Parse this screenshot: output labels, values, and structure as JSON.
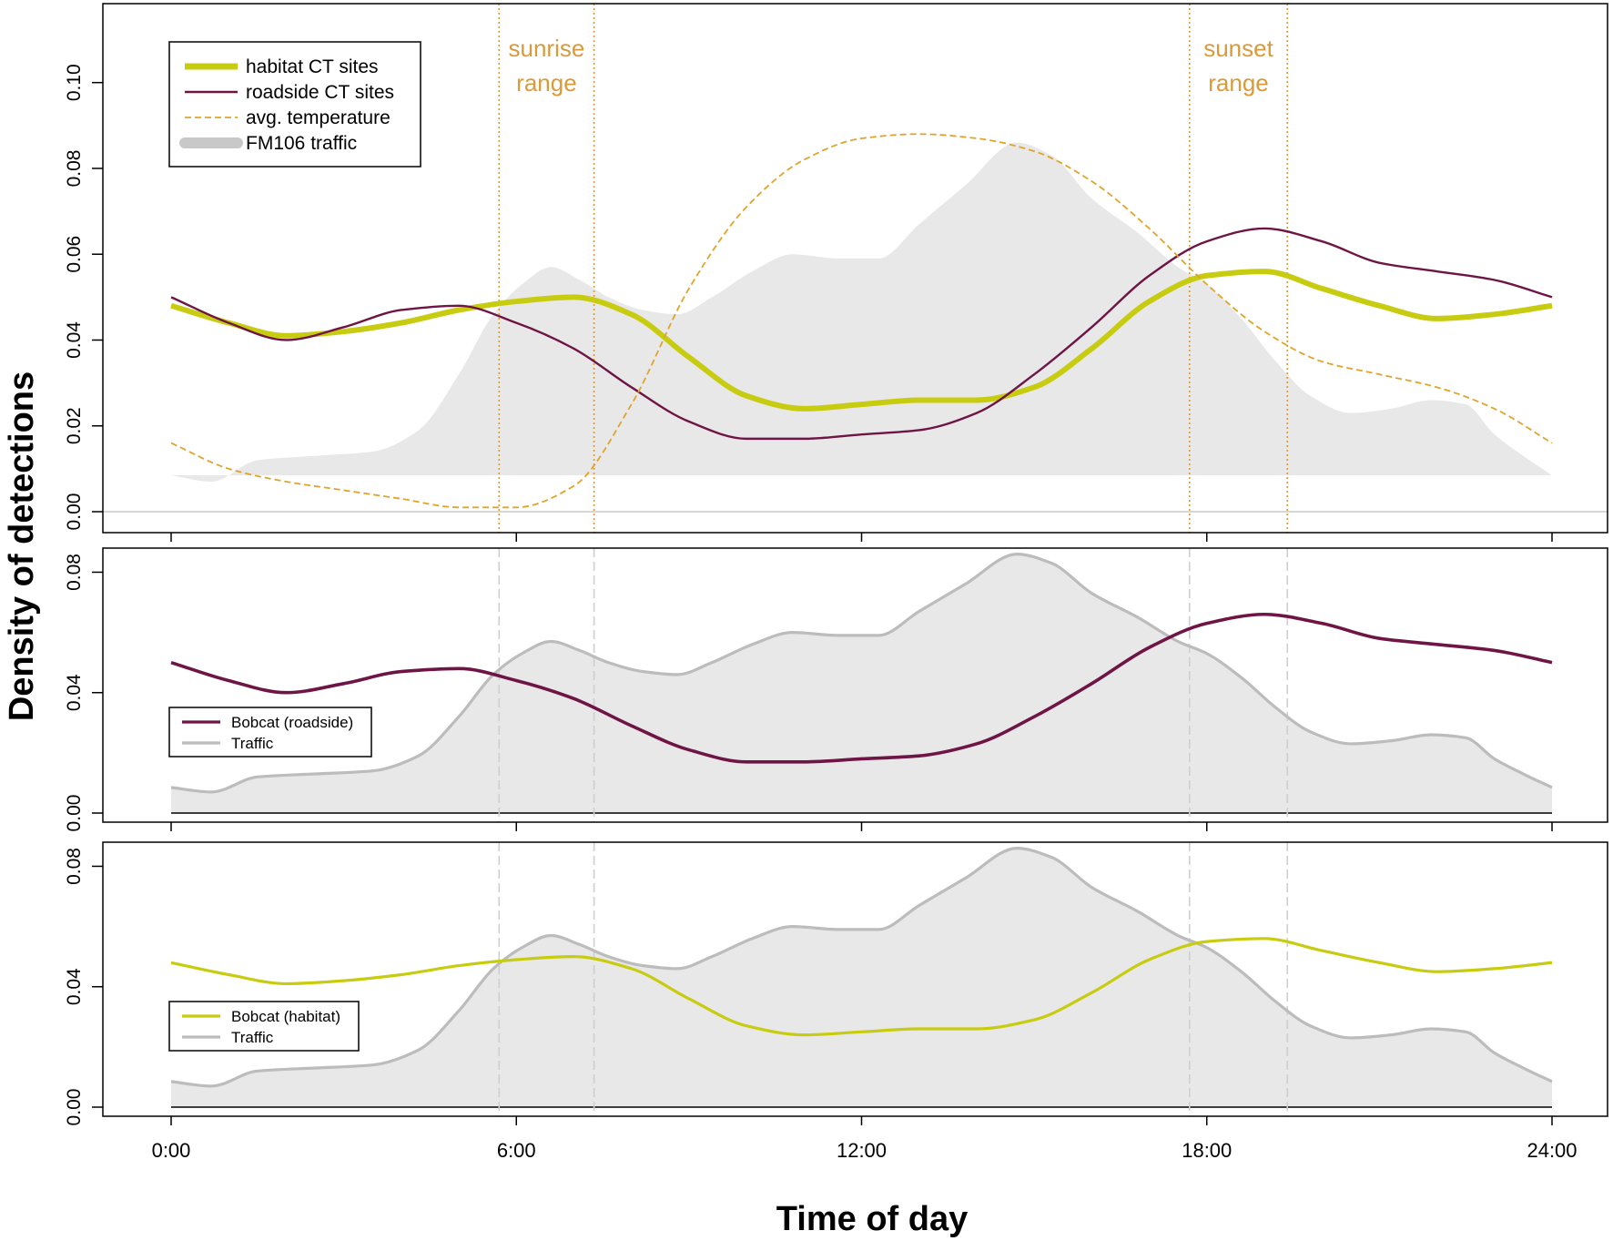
{
  "figure": {
    "ylabel": "Density of detections",
    "xlabel": "Time of day"
  },
  "colors": {
    "habitat": "#c8cc10",
    "roadside": "#6e1545",
    "temperature": "#e0a42c",
    "traffic_fill": "#e8e8e8",
    "traffic_line": "#bcbcbc",
    "annotation": "#d99a3a",
    "zero_line": "#c8c8c8"
  },
  "chart_data": [
    {
      "type": "line",
      "panel": "top",
      "xlim": [
        0,
        24
      ],
      "ylim": [
        0,
        0.115
      ],
      "y_ticks": [
        0.0,
        0.02,
        0.04,
        0.06,
        0.08,
        0.1
      ],
      "y_tick_labels": [
        "0.00",
        "0.02",
        "0.04",
        "0.06",
        "0.08",
        "0.10"
      ],
      "x_ticks": [
        0,
        6,
        12,
        18,
        24
      ],
      "annotations": [
        {
          "text": [
            "sunrise",
            "range"
          ],
          "x_range": [
            5.7,
            7.35
          ]
        },
        {
          "text": [
            "sunset",
            "range"
          ],
          "x_range": [
            17.7,
            19.4
          ]
        }
      ],
      "legend": {
        "position": "top-left",
        "entries": [
          {
            "label": "habitat CT sites",
            "key": "habitat",
            "style": "thick"
          },
          {
            "label": "roadside CT sites",
            "key": "roadside",
            "style": "thin"
          },
          {
            "label": "avg. temperature",
            "key": "temperature",
            "style": "dashed"
          },
          {
            "label": "FM106 traffic",
            "key": "traffic",
            "style": "band"
          }
        ]
      },
      "series": [
        {
          "name": "habitat CT sites",
          "key": "habitat",
          "x": [
            0,
            1,
            2,
            3,
            4,
            5,
            6,
            7,
            8,
            9,
            10,
            11,
            12,
            13,
            14,
            15,
            16,
            17,
            18,
            19,
            20,
            21,
            22,
            23,
            24
          ],
          "values": [
            0.048,
            0.044,
            0.041,
            0.042,
            0.044,
            0.047,
            0.049,
            0.05,
            0.046,
            0.036,
            0.027,
            0.024,
            0.025,
            0.026,
            0.026,
            0.029,
            0.038,
            0.049,
            0.055,
            0.056,
            0.052,
            0.048,
            0.045,
            0.046,
            0.048
          ]
        },
        {
          "name": "roadside CT sites",
          "key": "roadside",
          "x": [
            0,
            1,
            2,
            3,
            4,
            5,
            6,
            7,
            8,
            9,
            10,
            11,
            12,
            13,
            14,
            15,
            16,
            17,
            18,
            19,
            20,
            21,
            22,
            23,
            24
          ],
          "values": [
            0.05,
            0.044,
            0.04,
            0.043,
            0.047,
            0.048,
            0.044,
            0.038,
            0.029,
            0.021,
            0.017,
            0.017,
            0.018,
            0.019,
            0.023,
            0.032,
            0.043,
            0.055,
            0.063,
            0.066,
            0.063,
            0.058,
            0.056,
            0.054,
            0.05
          ]
        },
        {
          "name": "avg. temperature",
          "key": "temperature",
          "x": [
            0,
            1,
            2,
            3,
            4,
            5,
            6,
            7,
            8,
            9,
            10,
            11,
            12,
            13,
            14,
            15,
            16,
            17,
            18,
            19,
            20,
            21,
            22,
            23,
            24
          ],
          "values": [
            0.016,
            0.01,
            0.007,
            0.005,
            0.003,
            0.001,
            0.001,
            0.006,
            0.025,
            0.052,
            0.071,
            0.082,
            0.087,
            0.088,
            0.087,
            0.084,
            0.077,
            0.066,
            0.053,
            0.042,
            0.035,
            0.032,
            0.029,
            0.024,
            0.016
          ]
        },
        {
          "name": "FM106 traffic",
          "key": "traffic",
          "baseline": 0.0085,
          "x": [
            0,
            0.7,
            1.5,
            2.5,
            3.5,
            4.3,
            5.0,
            5.6,
            6.1,
            6.6,
            7.1,
            7.6,
            8.2,
            8.8,
            9.4,
            10.1,
            10.8,
            11.6,
            12.3,
            13.0,
            13.8,
            14.7,
            15.3,
            16.0,
            16.8,
            17.5,
            18.0,
            18.6,
            19.2,
            19.8,
            20.5,
            21.2,
            21.9,
            22.5,
            23.0,
            23.5,
            24.0
          ],
          "values": [
            0.0085,
            0.007,
            0.012,
            0.013,
            0.014,
            0.019,
            0.032,
            0.046,
            0.053,
            0.057,
            0.054,
            0.05,
            0.047,
            0.046,
            0.05,
            0.056,
            0.06,
            0.059,
            0.059,
            0.067,
            0.076,
            0.086,
            0.083,
            0.073,
            0.065,
            0.057,
            0.053,
            0.045,
            0.035,
            0.027,
            0.023,
            0.024,
            0.026,
            0.025,
            0.018,
            0.013,
            0.0085
          ]
        }
      ]
    },
    {
      "type": "line",
      "panel": "middle",
      "xlim": [
        0,
        24
      ],
      "ylim": [
        0,
        0.088
      ],
      "y_ticks": [
        0.0,
        0.04,
        0.08
      ],
      "y_tick_labels": [
        "0.00",
        "0.04",
        "0.08"
      ],
      "x_ticks": [
        0,
        6,
        12,
        18,
        24
      ],
      "legend": {
        "position": "bottom-left",
        "entries": [
          {
            "label": "Bobcat (roadside)",
            "key": "roadside"
          },
          {
            "label": "Traffic",
            "key": "traffic"
          }
        ]
      },
      "series": [
        {
          "name": "Bobcat (roadside)",
          "key": "roadside",
          "x": [
            0,
            1,
            2,
            3,
            4,
            5,
            6,
            7,
            8,
            9,
            10,
            11,
            12,
            13,
            14,
            15,
            16,
            17,
            18,
            19,
            20,
            21,
            22,
            23,
            24
          ],
          "values": [
            0.05,
            0.044,
            0.04,
            0.043,
            0.047,
            0.048,
            0.044,
            0.038,
            0.029,
            0.021,
            0.017,
            0.017,
            0.018,
            0.019,
            0.023,
            0.032,
            0.043,
            0.055,
            0.063,
            0.066,
            0.063,
            0.058,
            0.056,
            0.054,
            0.05
          ]
        },
        {
          "name": "Traffic",
          "key": "traffic",
          "x": [
            0,
            0.7,
            1.5,
            2.5,
            3.5,
            4.3,
            5.0,
            5.6,
            6.1,
            6.6,
            7.1,
            7.6,
            8.2,
            8.8,
            9.4,
            10.1,
            10.8,
            11.6,
            12.3,
            13.0,
            13.8,
            14.7,
            15.3,
            16.0,
            16.8,
            17.5,
            18.0,
            18.6,
            19.2,
            19.8,
            20.5,
            21.2,
            21.9,
            22.5,
            23.0,
            23.5,
            24.0
          ],
          "values": [
            0.0085,
            0.007,
            0.012,
            0.013,
            0.014,
            0.019,
            0.032,
            0.046,
            0.053,
            0.057,
            0.054,
            0.05,
            0.047,
            0.046,
            0.05,
            0.056,
            0.06,
            0.059,
            0.059,
            0.067,
            0.076,
            0.086,
            0.083,
            0.073,
            0.065,
            0.057,
            0.053,
            0.045,
            0.035,
            0.027,
            0.023,
            0.024,
            0.026,
            0.025,
            0.018,
            0.013,
            0.0085
          ]
        }
      ]
    },
    {
      "type": "line",
      "panel": "bottom",
      "xlim": [
        0,
        24
      ],
      "ylim": [
        0,
        0.088
      ],
      "y_ticks": [
        0.0,
        0.04,
        0.08
      ],
      "y_tick_labels": [
        "0.00",
        "0.04",
        "0.08"
      ],
      "x_ticks": [
        0,
        6,
        12,
        18,
        24
      ],
      "x_tick_labels": [
        "0:00",
        "6:00",
        "12:00",
        "18:00",
        "24:00"
      ],
      "legend": {
        "position": "bottom-left",
        "entries": [
          {
            "label": "Bobcat (habitat)",
            "key": "habitat"
          },
          {
            "label": "Traffic",
            "key": "traffic"
          }
        ]
      },
      "series": [
        {
          "name": "Bobcat (habitat)",
          "key": "habitat",
          "x": [
            0,
            1,
            2,
            3,
            4,
            5,
            6,
            7,
            8,
            9,
            10,
            11,
            12,
            13,
            14,
            15,
            16,
            17,
            18,
            19,
            20,
            21,
            22,
            23,
            24
          ],
          "values": [
            0.048,
            0.044,
            0.041,
            0.042,
            0.044,
            0.047,
            0.049,
            0.05,
            0.046,
            0.036,
            0.027,
            0.024,
            0.025,
            0.026,
            0.026,
            0.029,
            0.038,
            0.049,
            0.055,
            0.056,
            0.052,
            0.048,
            0.045,
            0.046,
            0.048
          ]
        },
        {
          "name": "Traffic",
          "key": "traffic",
          "x": [
            0,
            0.7,
            1.5,
            2.5,
            3.5,
            4.3,
            5.0,
            5.6,
            6.1,
            6.6,
            7.1,
            7.6,
            8.2,
            8.8,
            9.4,
            10.1,
            10.8,
            11.6,
            12.3,
            13.0,
            13.8,
            14.7,
            15.3,
            16.0,
            16.8,
            17.5,
            18.0,
            18.6,
            19.2,
            19.8,
            20.5,
            21.2,
            21.9,
            22.5,
            23.0,
            23.5,
            24.0
          ],
          "values": [
            0.0085,
            0.007,
            0.012,
            0.013,
            0.014,
            0.019,
            0.032,
            0.046,
            0.053,
            0.057,
            0.054,
            0.05,
            0.047,
            0.046,
            0.05,
            0.056,
            0.06,
            0.059,
            0.059,
            0.067,
            0.076,
            0.086,
            0.083,
            0.073,
            0.065,
            0.057,
            0.053,
            0.045,
            0.035,
            0.027,
            0.023,
            0.024,
            0.026,
            0.025,
            0.018,
            0.013,
            0.0085
          ]
        }
      ]
    }
  ]
}
